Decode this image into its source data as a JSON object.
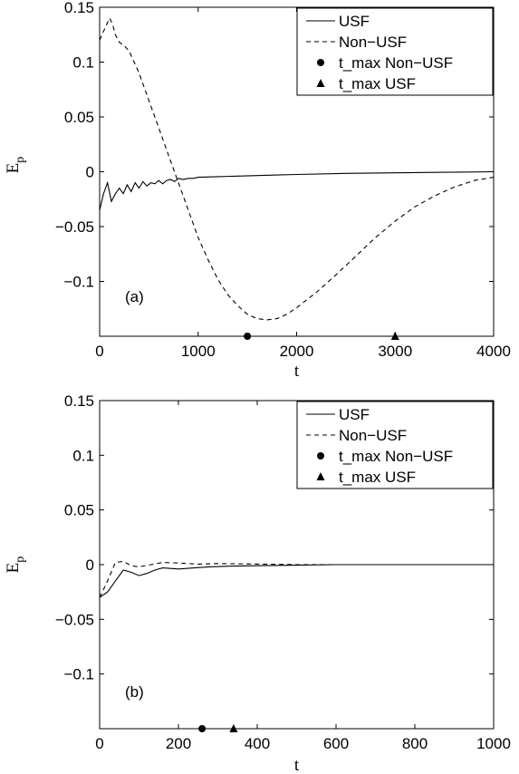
{
  "chart_data": [
    {
      "type": "line",
      "panel_label": "(a)",
      "xlabel": "t",
      "ylabel": "E",
      "ylabel_sub": "p",
      "xlim": [
        0,
        4000
      ],
      "ylim": [
        -0.15,
        0.15
      ],
      "xticks": [
        0,
        1000,
        2000,
        3000,
        4000
      ],
      "yticks": [
        -0.1,
        -0.05,
        0,
        0.05,
        0.1,
        0.15
      ],
      "xtick_labels": [
        "0",
        "1000",
        "2000",
        "3000",
        "4000"
      ],
      "ytick_labels": [
        "−0.1",
        "−0.05",
        "0",
        "0.05",
        "0.1",
        "0.15"
      ],
      "legend_position": "top-right",
      "grid": false,
      "series": [
        {
          "name": "USF",
          "style": "solid",
          "x": [
            0,
            40,
            80,
            120,
            160,
            200,
            240,
            280,
            320,
            360,
            400,
            440,
            480,
            520,
            560,
            600,
            640,
            680,
            720,
            760,
            800,
            850,
            900,
            950,
            1000,
            1200,
            1400,
            1600,
            1800,
            2000,
            2500,
            3000,
            3500,
            4000
          ],
          "y": [
            -0.035,
            -0.02,
            -0.01,
            -0.027,
            -0.02,
            -0.015,
            -0.02,
            -0.012,
            -0.018,
            -0.01,
            -0.015,
            -0.009,
            -0.013,
            -0.01,
            -0.011,
            -0.008,
            -0.011,
            -0.008,
            -0.007,
            -0.009,
            -0.006,
            -0.007,
            -0.006,
            -0.006,
            -0.005,
            -0.0045,
            -0.004,
            -0.0035,
            -0.003,
            -0.0025,
            -0.0015,
            -0.001,
            -0.0005,
            0
          ]
        },
        {
          "name": "Non−USF",
          "style": "dashed",
          "x": [
            0,
            50,
            100,
            130,
            160,
            200,
            250,
            300,
            350,
            400,
            500,
            600,
            700,
            800,
            900,
            1000,
            1100,
            1200,
            1300,
            1400,
            1500,
            1600,
            1700,
            1800,
            1900,
            2000,
            2200,
            2400,
            2600,
            2800,
            3000,
            3200,
            3400,
            3600,
            3800,
            4000
          ],
          "y": [
            0.12,
            0.13,
            0.14,
            0.135,
            0.125,
            0.118,
            0.115,
            0.11,
            0.1,
            0.09,
            0.065,
            0.04,
            0.015,
            -0.01,
            -0.035,
            -0.06,
            -0.08,
            -0.098,
            -0.112,
            -0.122,
            -0.13,
            -0.134,
            -0.135,
            -0.134,
            -0.13,
            -0.124,
            -0.11,
            -0.094,
            -0.077,
            -0.06,
            -0.045,
            -0.032,
            -0.022,
            -0.014,
            -0.008,
            -0.005
          ]
        }
      ],
      "markers": [
        {
          "name": "t_max Non−USF",
          "shape": "circle",
          "x": 1500
        },
        {
          "name": "t_max USF",
          "shape": "triangle",
          "x": 3000
        }
      ]
    },
    {
      "type": "line",
      "panel_label": "(b)",
      "xlabel": "t",
      "ylabel": "E",
      "ylabel_sub": "p",
      "xlim": [
        0,
        1000
      ],
      "ylim": [
        -0.15,
        0.15
      ],
      "xticks": [
        0,
        200,
        400,
        600,
        800,
        1000
      ],
      "yticks": [
        -0.1,
        -0.05,
        0,
        0.05,
        0.1,
        0.15
      ],
      "xtick_labels": [
        "0",
        "200",
        "400",
        "600",
        "800",
        "1000"
      ],
      "ytick_labels": [
        "−0.1",
        "−0.05",
        "0",
        "0.05",
        "0.1",
        "0.15"
      ],
      "legend_position": "top-right",
      "grid": false,
      "series": [
        {
          "name": "USF",
          "style": "solid",
          "x": [
            0,
            20,
            40,
            60,
            80,
            100,
            120,
            140,
            160,
            180,
            200,
            240,
            280,
            320,
            400,
            500,
            600,
            800,
            1000
          ],
          "y": [
            -0.03,
            -0.025,
            -0.015,
            -0.005,
            -0.007,
            -0.01,
            -0.008,
            -0.005,
            -0.003,
            -0.0035,
            -0.004,
            -0.003,
            -0.002,
            -0.0015,
            -0.001,
            -0.0005,
            0,
            0,
            0
          ]
        },
        {
          "name": "Non−USF",
          "style": "dashed",
          "x": [
            0,
            20,
            40,
            60,
            80,
            100,
            130,
            160,
            200,
            250,
            300,
            400,
            500,
            600,
            800,
            1000
          ],
          "y": [
            -0.03,
            -0.015,
            0.002,
            0.003,
            -0.001,
            -0.002,
            0,
            0.002,
            0.0015,
            0.0005,
            0.001,
            0.0005,
            0,
            0,
            0,
            0
          ]
        }
      ],
      "markers": [
        {
          "name": "t_max Non−USF",
          "shape": "circle",
          "x": 260
        },
        {
          "name": "t_max USF",
          "shape": "triangle",
          "x": 340
        }
      ]
    }
  ]
}
